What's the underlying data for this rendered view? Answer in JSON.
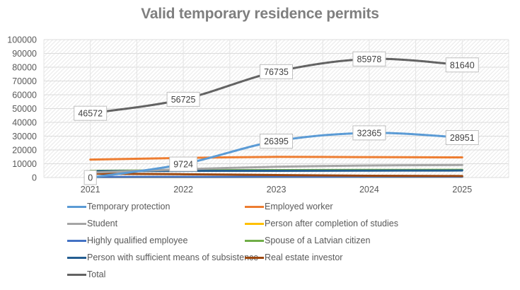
{
  "chart_data": {
    "type": "line",
    "title": "Valid temporary residence permits",
    "xlabel": "",
    "ylabel": "",
    "categories": [
      "2021",
      "2022",
      "2023",
      "2024",
      "2025"
    ],
    "ylim": [
      0,
      100000
    ],
    "yticks": [
      0,
      10000,
      20000,
      30000,
      40000,
      50000,
      60000,
      70000,
      80000,
      90000,
      100000
    ],
    "grid": true,
    "legend_position": "bottom",
    "series": [
      {
        "name": "Temporary protection",
        "color": "#5b9bd5",
        "values": [
          0,
          9724,
          26395,
          32365,
          28951
        ],
        "labels": true
      },
      {
        "name": "Employed worker",
        "color": "#ed7d31",
        "values": [
          13000,
          14200,
          15000,
          14800,
          14600
        ],
        "labels": false
      },
      {
        "name": "Student",
        "color": "#a5a5a5",
        "values": [
          3500,
          6000,
          7800,
          8700,
          9100
        ],
        "labels": false
      },
      {
        "name": "Person after completion of studies",
        "color": "#ffc000",
        "values": [
          300,
          350,
          400,
          450,
          500
        ],
        "labels": false
      },
      {
        "name": "Highly qualified employee",
        "color": "#4472c4",
        "values": [
          400,
          450,
          500,
          550,
          600
        ],
        "labels": false
      },
      {
        "name": "Spouse of a Latvian citizen",
        "color": "#70ad47",
        "values": [
          4900,
          5200,
          5400,
          5500,
          5600
        ],
        "labels": false
      },
      {
        "name": "Person with sufficient means of subsistence",
        "color": "#255e91",
        "values": [
          4600,
          4800,
          4900,
          5000,
          5100
        ],
        "labels": false
      },
      {
        "name": "Real estate investor",
        "color": "#9e480e",
        "values": [
          2800,
          2400,
          1800,
          1300,
          1100
        ],
        "labels": false
      },
      {
        "name": "Total",
        "color": "#636363",
        "values": [
          46572,
          56725,
          76735,
          85978,
          81640
        ],
        "labels": true
      }
    ]
  }
}
